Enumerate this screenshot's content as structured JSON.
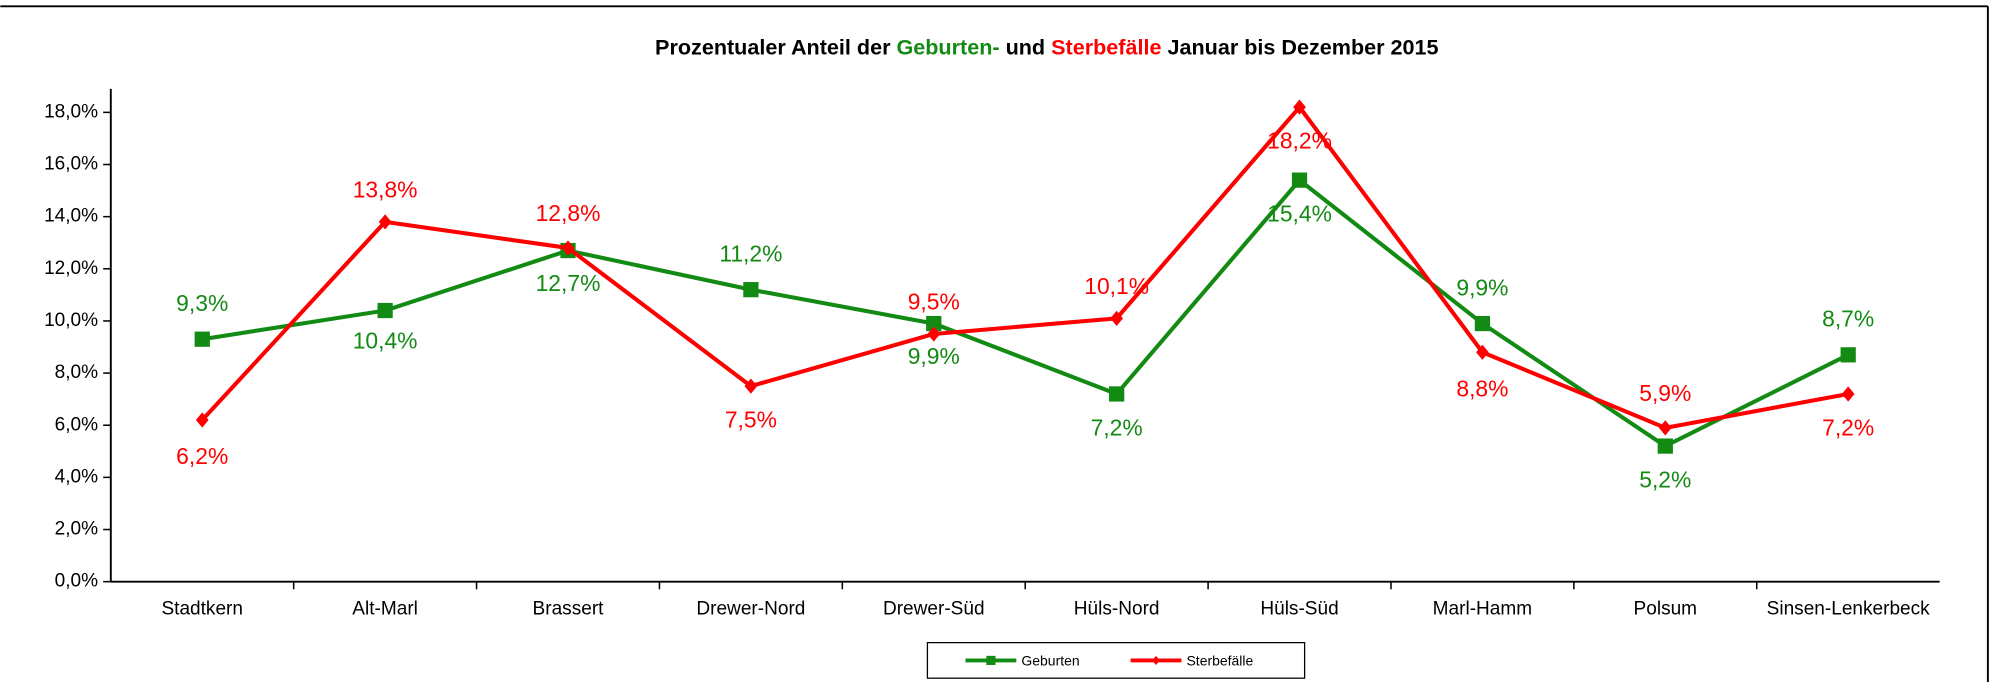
{
  "chart_data": {
    "type": "line",
    "title": [
      "Prozentualer Anteil der ",
      "Geburten-",
      " und ",
      "Sterbefälle",
      " Januar bis Dezember 2015"
    ],
    "categories": [
      "Stadtkern",
      "Alt-Marl",
      "Brassert",
      "Drewer-Nord",
      "Drewer-Süd",
      "Hüls-Nord",
      "Hüls-Süd",
      "Marl-Hamm",
      "Polsum",
      "Sinsen-Lenkerbeck"
    ],
    "series": [
      {
        "name": "Geburten",
        "color": "#138a13",
        "marker": "square",
        "values": [
          9.3,
          10.4,
          12.7,
          11.2,
          9.9,
          7.2,
          15.4,
          9.9,
          5.2,
          8.7
        ],
        "value_labels": [
          "9,3%",
          "10,4%",
          "12,7%",
          "11,2%",
          "9,9%",
          "7,2%",
          "15,4%",
          "9,9%",
          "5,2%",
          "8,7%"
        ]
      },
      {
        "name": "Sterbefälle",
        "color": "#ff0000",
        "marker": "diamond",
        "values": [
          6.2,
          13.8,
          12.8,
          7.5,
          9.5,
          10.1,
          18.2,
          8.8,
          5.9,
          7.2
        ],
        "value_labels": [
          "6,2%",
          "13,8%",
          "12,8%",
          "7,5%",
          "9,5%",
          "10,1%",
          "18,2%",
          "8,8%",
          "5,9%",
          "7,2%"
        ]
      }
    ],
    "ylim": [
      0,
      18.9
    ],
    "yticks": [
      {
        "value": 0,
        "label": "0,0%"
      },
      {
        "value": 2,
        "label": "2,0%"
      },
      {
        "value": 4,
        "label": "4,0%"
      },
      {
        "value": 6,
        "label": "6,0%"
      },
      {
        "value": 8,
        "label": "8,0%"
      },
      {
        "value": 10,
        "label": "10,0%"
      },
      {
        "value": 12,
        "label": "12,0%"
      },
      {
        "value": 14,
        "label": "14,0%"
      },
      {
        "value": 16,
        "label": "16,0%"
      },
      {
        "value": 18,
        "label": "18,0%"
      }
    ],
    "legend": "bottom",
    "grid": false
  }
}
